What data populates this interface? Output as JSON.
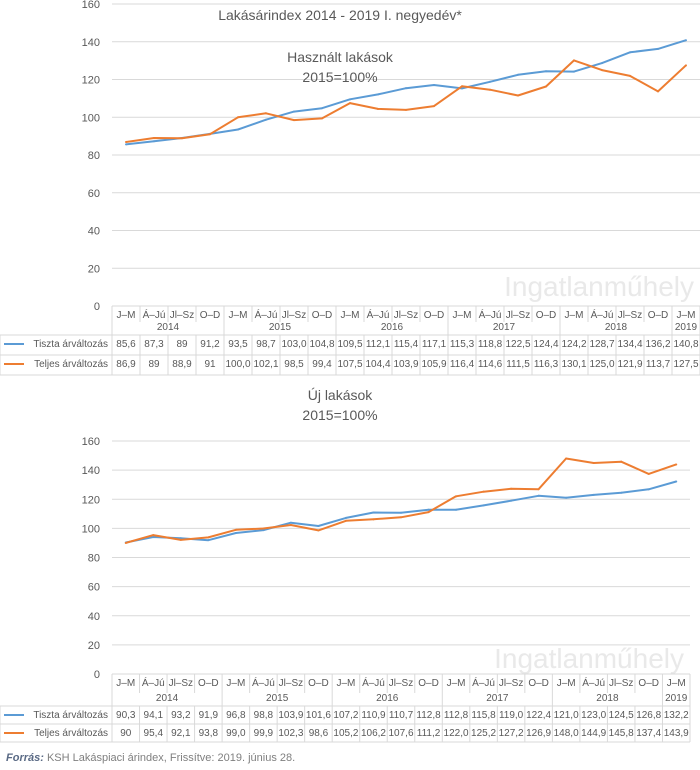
{
  "colors": {
    "series1": "#5b9bd5",
    "series2": "#ed7d31",
    "grid": "#d9d9d9",
    "text": "#595959",
    "watermark": "#e9e9e9"
  },
  "watermark": "Ingatlanműhely",
  "footer": {
    "label": "Forrás:",
    "text": "KSH Lakáspiaci árindex, Frissítve: 2019. június 28."
  },
  "chart_data": [
    {
      "type": "line",
      "title": "Lakásárindex 2014 - 2019 I. negyedév*",
      "subtitle": [
        "Használt lakások",
        "2015=100%"
      ],
      "ylim": [
        0,
        160
      ],
      "yticks": [
        0,
        20,
        40,
        60,
        80,
        100,
        120,
        140,
        160
      ],
      "grid": true,
      "categories": [
        "J–M",
        "Á–Jú",
        "Jl–Sz",
        "O–D",
        "J–M",
        "Á–Jú",
        "Jl–Sz",
        "O–D",
        "J–M",
        "Á–Jú",
        "Jl–Sz",
        "O–D",
        "J–M",
        "Á–Jú",
        "Jl–Sz",
        "O–D",
        "J–M",
        "Á–Jú",
        "Jl–Sz",
        "O–D",
        "J–M"
      ],
      "years": [
        "2014",
        "2015",
        "2016",
        "2017",
        "2018",
        "2019"
      ],
      "series": [
        {
          "name": "Tiszta árváltozás",
          "values": [
            85.6,
            87.3,
            89,
            91.2,
            93.5,
            98.7,
            103.0,
            104.8,
            109.5,
            112.1,
            115.4,
            117.1,
            115.3,
            118.8,
            122.5,
            124.4,
            124.2,
            128.7,
            134.4,
            136.2,
            140.8
          ],
          "labels": [
            "85,6",
            "87,3",
            "89",
            "91,2",
            "93,5",
            "98,7",
            "103,0",
            "104,8",
            "109,5",
            "112,1",
            "115,4",
            "117,1",
            "115,3",
            "118,8",
            "122,5",
            "124,4",
            "124,2",
            "128,7",
            "134,4",
            "136,2",
            "140,8"
          ]
        },
        {
          "name": "Teljes árváltozás",
          "values": [
            86.9,
            89,
            88.9,
            91,
            100.0,
            102.1,
            98.5,
            99.4,
            107.5,
            104.4,
            103.9,
            105.9,
            116.4,
            114.6,
            111.5,
            116.3,
            130.1,
            125.0,
            121.9,
            113.7,
            127.5
          ],
          "labels": [
            "86,9",
            "89",
            "88,9",
            "91",
            "100,0",
            "102,1",
            "98,5",
            "99,4",
            "107,5",
            "104,4",
            "103,9",
            "105,9",
            "116,4",
            "114,6",
            "111,5",
            "116,3",
            "130,1",
            "125,0",
            "121,9",
            "113,7",
            "127,5"
          ]
        }
      ]
    },
    {
      "type": "line",
      "title": "",
      "subtitle": [
        "Új lakások",
        "2015=100%"
      ],
      "ylim": [
        0,
        160
      ],
      "yticks": [
        0,
        20,
        40,
        60,
        80,
        100,
        120,
        140,
        160
      ],
      "grid": true,
      "categories": [
        "J–M",
        "Á–Jú",
        "Jl–Sz",
        "O–D",
        "J–M",
        "Á–Jú",
        "Jl–Sz",
        "O–D",
        "J–M",
        "Á–Jú",
        "Jl–Sz",
        "O–D",
        "J–M",
        "Á–Jú",
        "Jl–Sz",
        "O–D",
        "J–M",
        "Á–Jú",
        "Jl–Sz",
        "O–D",
        "J–M"
      ],
      "years": [
        "2014",
        "2015",
        "2016",
        "2017",
        "2018",
        "2019"
      ],
      "series": [
        {
          "name": "Tiszta árváltozás",
          "values": [
            90.3,
            94.1,
            93.2,
            91.9,
            96.8,
            98.8,
            103.9,
            101.6,
            107.2,
            110.9,
            110.7,
            112.8,
            112.8,
            115.8,
            119.0,
            122.4,
            121.0,
            123.0,
            124.5,
            126.8,
            132.2
          ],
          "labels": [
            "90,3",
            "94,1",
            "93,2",
            "91,9",
            "96,8",
            "98,8",
            "103,9",
            "101,6",
            "107,2",
            "110,9",
            "110,7",
            "112,8",
            "112,8",
            "115,8",
            "119,0",
            "122,4",
            "121,0",
            "123,0",
            "124,5",
            "126,8",
            "132,2"
          ]
        },
        {
          "name": "Teljes árváltozás",
          "values": [
            90,
            95.4,
            92.1,
            93.8,
            99.0,
            99.9,
            102.3,
            98.6,
            105.2,
            106.2,
            107.6,
            111.2,
            122.0,
            125.2,
            127.2,
            126.9,
            148.0,
            144.9,
            145.8,
            137.4,
            143.9
          ],
          "labels": [
            "90",
            "95,4",
            "92,1",
            "93,8",
            "99,0",
            "99,9",
            "102,3",
            "98,6",
            "105,2",
            "106,2",
            "107,6",
            "111,2",
            "122,0",
            "125,2",
            "127,2",
            "126,9",
            "148,0",
            "144,9",
            "145,8",
            "137,4",
            "143,9"
          ]
        }
      ]
    }
  ]
}
